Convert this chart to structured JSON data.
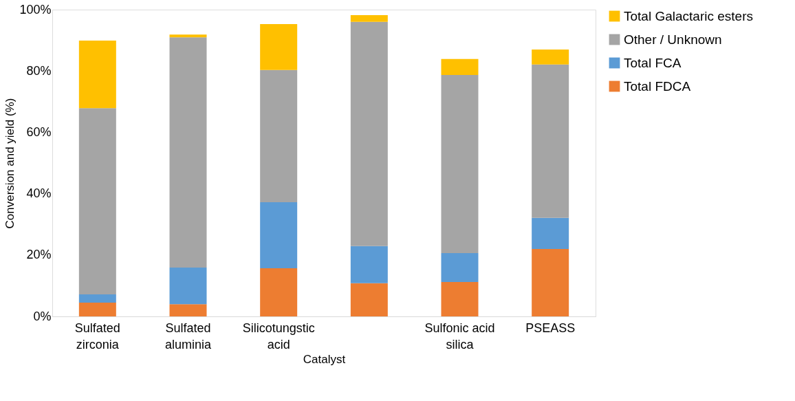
{
  "chart_data": {
    "type": "bar",
    "stacked": true,
    "xlabel": "Catalyst",
    "ylabel": "Conversion and  yield (%)",
    "categories": [
      "Sulfated\nzirconia",
      "Sulfated\naluminia",
      "Silicotungstic\nacid",
      null,
      "Sulfonic acid\nsilica",
      "PSEASS"
    ],
    "series": [
      {
        "name": "Total FDCA",
        "color": "#ed7d31",
        "values": [
          4.5,
          4.0,
          15.7,
          10.8,
          11.2,
          22.0
        ]
      },
      {
        "name": "Total FCA",
        "color": "#5b9bd5",
        "values": [
          2.7,
          11.9,
          21.5,
          12.1,
          9.4,
          10.1
        ]
      },
      {
        "name": "Other / Unknown",
        "color": "#a5a5a5",
        "values": [
          60.7,
          75.1,
          43.1,
          73.1,
          58.1,
          50.0
        ]
      },
      {
        "name": "Total Galactaric esters",
        "color": "#ffc000",
        "values": [
          22.0,
          0.9,
          15.0,
          2.2,
          5.2,
          4.9
        ]
      }
    ],
    "ylim": [
      0,
      100
    ],
    "yticks": [
      {
        "value": 0,
        "label": "0%"
      },
      {
        "value": 20,
        "label": "20%"
      },
      {
        "value": 40,
        "label": "40%"
      },
      {
        "value": 60,
        "label": "60%"
      },
      {
        "value": 80,
        "label": "80%"
      },
      {
        "value": 100,
        "label": "100%"
      }
    ],
    "grid": false,
    "legend": "right"
  }
}
